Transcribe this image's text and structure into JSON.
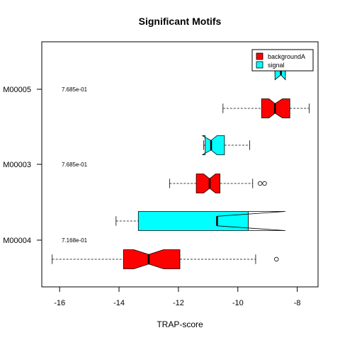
{
  "chart_data": {
    "type": "boxplot",
    "title": "Significant Motifs",
    "xlabel": "TRAP-score",
    "ylabel": "",
    "xlim": [
      -16.6,
      -7.3
    ],
    "xticks": [
      -16,
      -14,
      -12,
      -10,
      -8
    ],
    "xtick_labels": [
      "-16",
      "-14",
      "-12",
      "-10",
      "-8"
    ],
    "categories": [
      "M00004",
      "M00003",
      "M00005"
    ],
    "pvalues": [
      "7.168e-01",
      "7.685e-01",
      "7.685e-01"
    ],
    "series": [
      {
        "name": "backgroundA",
        "color": "#ff0000",
        "boxes": [
          {
            "whisker_low": -16.25,
            "q1": -13.85,
            "median": -13.0,
            "q3": -11.95,
            "whisker_high": -9.4,
            "notch": [
              -13.5,
              -12.5
            ],
            "outliers": [
              -8.7
            ]
          },
          {
            "whisker_low": -12.3,
            "q1": -11.4,
            "median": -10.95,
            "q3": -10.6,
            "whisker_high": -9.5,
            "notch": [
              -11.15,
              -10.75
            ],
            "outliers": [
              -9.25,
              -9.1
            ]
          },
          {
            "whisker_low": -10.5,
            "q1": -9.2,
            "median": -8.75,
            "q3": -8.25,
            "whisker_high": -7.6,
            "notch": [
              -8.95,
              -8.5
            ],
            "outliers": []
          }
        ]
      },
      {
        "name": "signal",
        "color": "#00ffff",
        "boxes": [
          {
            "whisker_low": -14.1,
            "q1": -13.35,
            "median": -10.7,
            "q3": -9.65,
            "whisker_high": -9.65,
            "notch": [
              -8.4,
              -8.4
            ],
            "outliers": []
          },
          {
            "whisker_low": -11.15,
            "q1": -11.1,
            "median": -10.9,
            "q3": -10.45,
            "whisker_high": -9.6,
            "notch": [
              -11.2,
              -10.7
            ],
            "outliers": []
          },
          {
            "whisker_low": -8.75,
            "q1": -8.75,
            "median": -8.55,
            "q3": -8.4,
            "whisker_high": -8.4,
            "notch": [
              -8.75,
              -8.4
            ],
            "outliers": []
          }
        ]
      }
    ],
    "legend": {
      "position": "top-right",
      "entries": [
        "backgroundA",
        "signal"
      ]
    },
    "grid": false
  }
}
